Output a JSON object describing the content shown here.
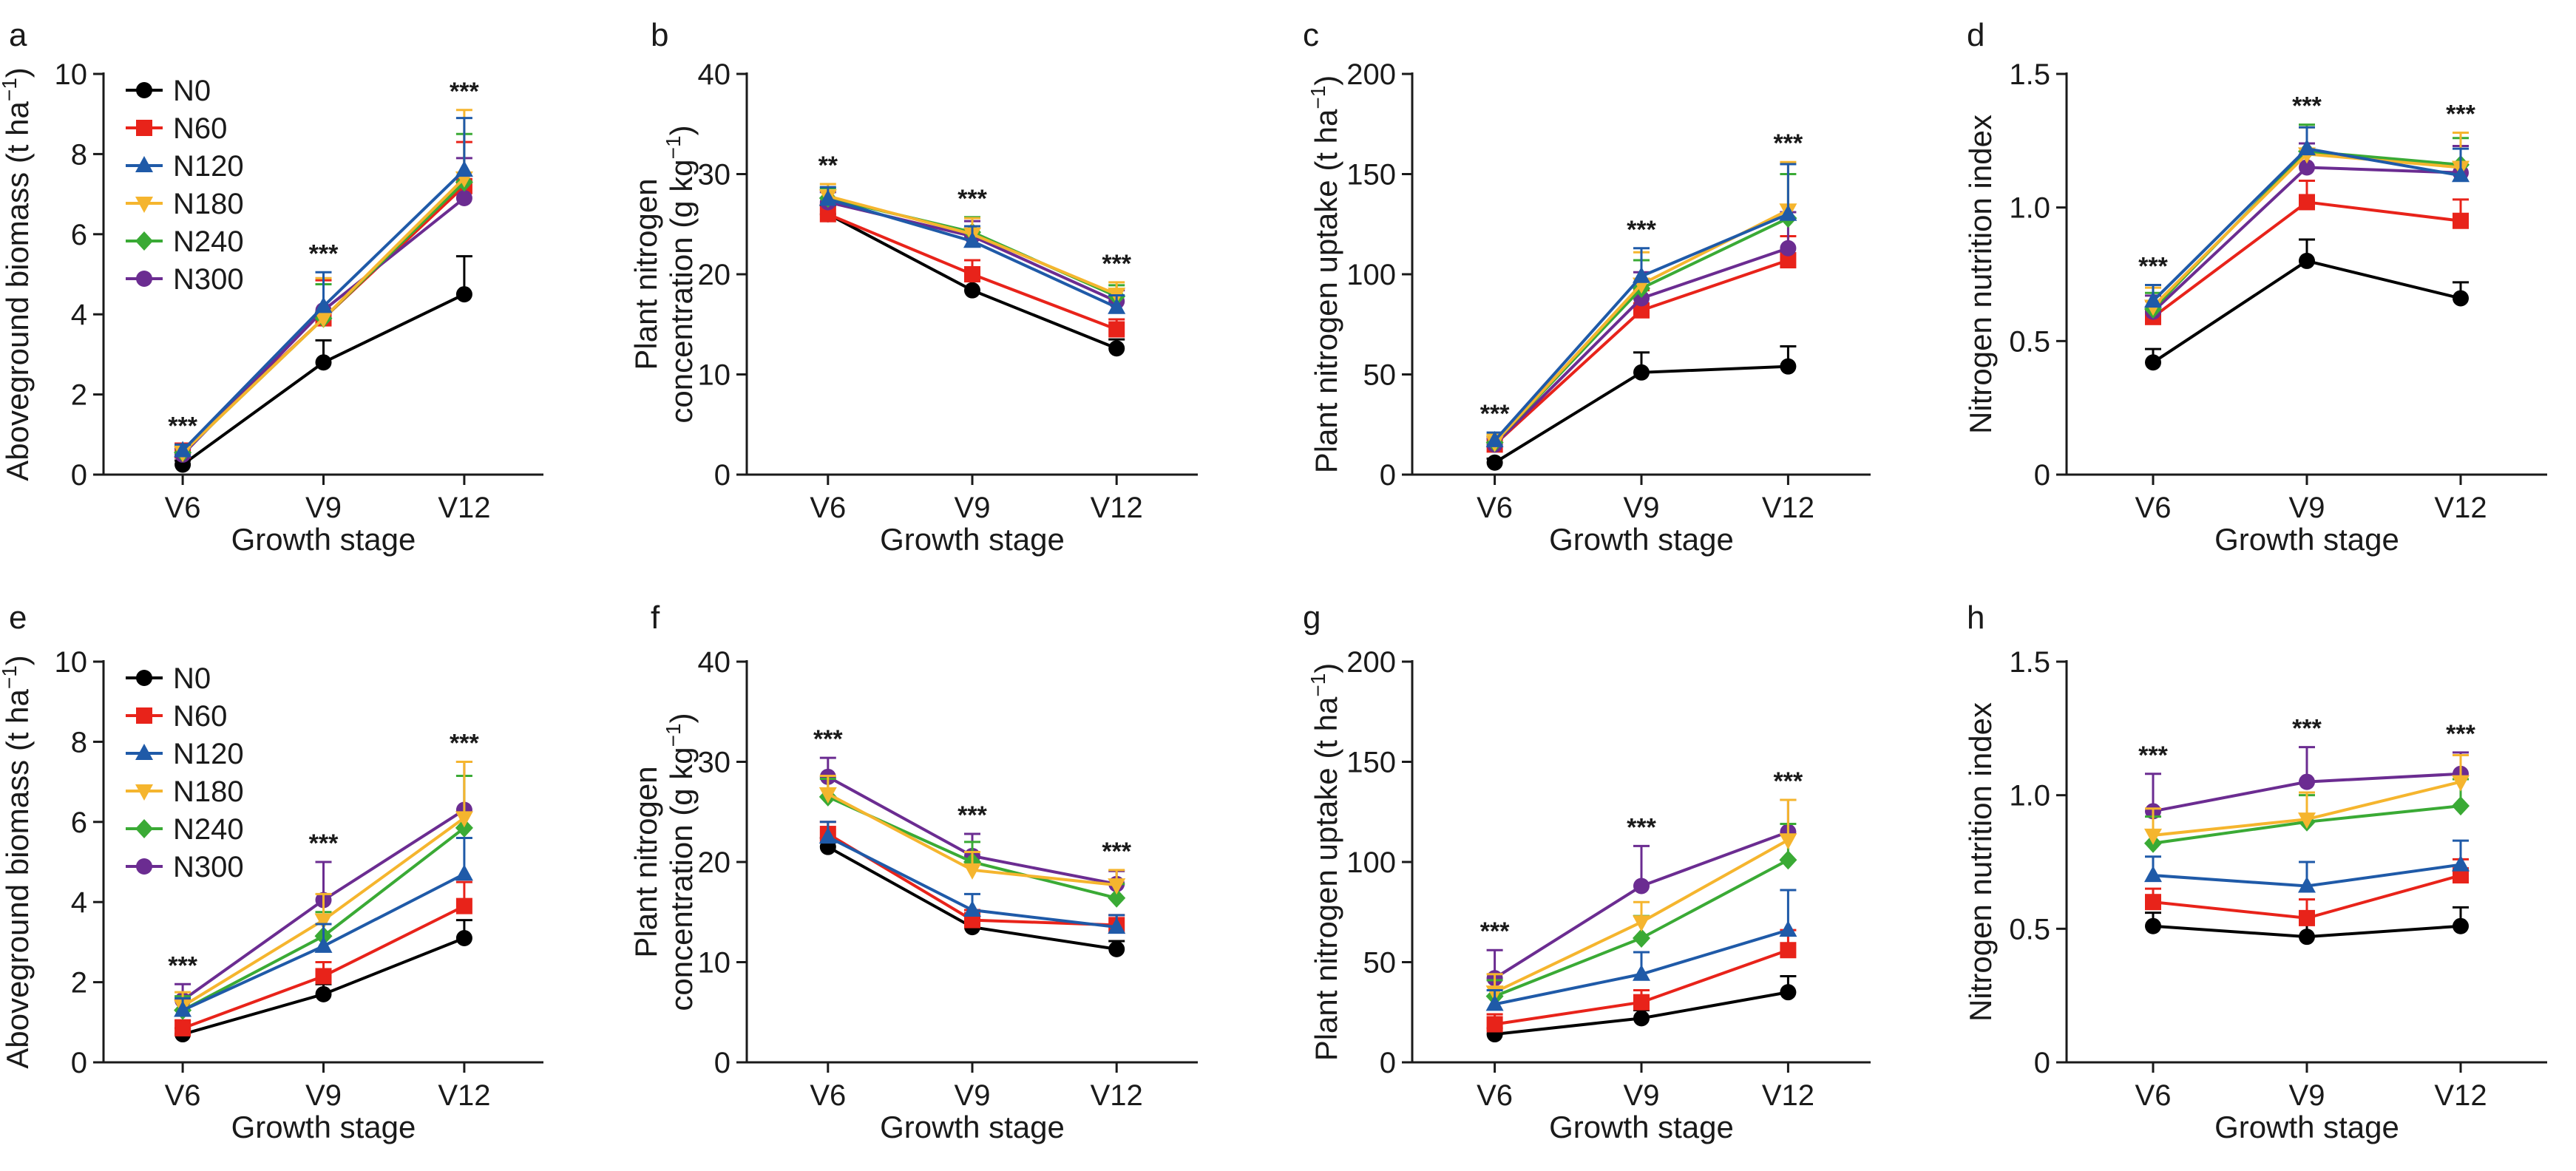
{
  "chart_data": [
    {
      "panel": "a",
      "type": "line",
      "categories": [
        "V6",
        "V9",
        "V12"
      ],
      "xlabel": "Growth stage",
      "ylabel": {
        "main": "Aboveground biomass (t ha",
        "sup": "−1",
        "after": ")"
      },
      "ylim": [
        0,
        10
      ],
      "yticks": [
        0,
        2,
        4,
        6,
        8,
        10
      ],
      "significance": [
        "***",
        "***",
        "***"
      ],
      "legend": true,
      "series": [
        {
          "name": "N0",
          "values": [
            0.25,
            2.8,
            4.5
          ],
          "errors": [
            0.1,
            0.55,
            0.95
          ]
        },
        {
          "name": "N60",
          "values": [
            0.6,
            3.9,
            7.2
          ],
          "errors": [
            0.15,
            0.95,
            1.1
          ]
        },
        {
          "name": "N120",
          "values": [
            0.6,
            4.2,
            7.6
          ],
          "errors": [
            0.15,
            0.85,
            1.3
          ]
        },
        {
          "name": "N180",
          "values": [
            0.55,
            3.9,
            7.4
          ],
          "errors": [
            0.15,
            1.0,
            1.7
          ]
        },
        {
          "name": "N240",
          "values": [
            0.55,
            3.9,
            7.3
          ],
          "errors": [
            0.15,
            0.85,
            1.2
          ]
        },
        {
          "name": "N300",
          "values": [
            0.5,
            4.1,
            6.9
          ],
          "errors": [
            0.15,
            0.8,
            1.0
          ]
        }
      ]
    },
    {
      "panel": "b",
      "type": "line",
      "categories": [
        "V6",
        "V9",
        "V12"
      ],
      "xlabel": "Growth stage",
      "ylabel": {
        "line1": "Plant nitrogen",
        "main": "concentration (g kg",
        "sup": "−1",
        "after": ")"
      },
      "ylim": [
        0,
        40
      ],
      "yticks": [
        0,
        10,
        20,
        30,
        40
      ],
      "significance": [
        "**",
        "***",
        "***"
      ],
      "legend": false,
      "series": [
        {
          "name": "N0",
          "values": [
            26.0,
            18.4,
            12.6
          ],
          "errors": [
            0.9,
            0.9,
            0.9
          ]
        },
        {
          "name": "N60",
          "values": [
            26.0,
            20.0,
            14.5
          ],
          "errors": [
            1.0,
            1.4,
            1.0
          ]
        },
        {
          "name": "N120",
          "values": [
            27.5,
            23.3,
            16.7
          ],
          "errors": [
            1.2,
            1.5,
            1.2
          ]
        },
        {
          "name": "N180",
          "values": [
            27.8,
            24.0,
            18.0
          ],
          "errors": [
            1.2,
            1.6,
            1.2
          ]
        },
        {
          "name": "N240",
          "values": [
            27.6,
            24.2,
            17.8
          ],
          "errors": [
            1.0,
            1.5,
            1.1
          ]
        },
        {
          "name": "N300",
          "values": [
            27.2,
            23.8,
            17.3
          ],
          "errors": [
            1.0,
            1.5,
            1.1
          ]
        }
      ]
    },
    {
      "panel": "c",
      "type": "line",
      "categories": [
        "V6",
        "V9",
        "V12"
      ],
      "xlabel": "Growth stage",
      "ylabel": {
        "main": "Plant nitrogen uptake (t ha",
        "sup": "−1",
        "after": ")"
      },
      "ylim": [
        0,
        200
      ],
      "yticks": [
        0,
        50,
        100,
        150,
        200
      ],
      "significance": [
        "***",
        "***",
        "***"
      ],
      "legend": false,
      "series": [
        {
          "name": "N0",
          "values": [
            6,
            51,
            54
          ],
          "errors": [
            2,
            10,
            10
          ]
        },
        {
          "name": "N60",
          "values": [
            15,
            82,
            107
          ],
          "errors": [
            3,
            10,
            12
          ]
        },
        {
          "name": "N120",
          "values": [
            17,
            99,
            130
          ],
          "errors": [
            4,
            14,
            25
          ]
        },
        {
          "name": "N180",
          "values": [
            16,
            95,
            132
          ],
          "errors": [
            4,
            16,
            24
          ]
        },
        {
          "name": "N240",
          "values": [
            16,
            93,
            128
          ],
          "errors": [
            4,
            14,
            22
          ]
        },
        {
          "name": "N300",
          "values": [
            15,
            88,
            113
          ],
          "errors": [
            3,
            13,
            18
          ]
        }
      ]
    },
    {
      "panel": "d",
      "type": "line",
      "categories": [
        "V6",
        "V9",
        "V12"
      ],
      "xlabel": "Growth stage",
      "ylabel": {
        "main": "Nitrogen nutrition index"
      },
      "ylim": [
        0,
        1.5
      ],
      "yticks": [
        0,
        0.5,
        1.0,
        1.5
      ],
      "yticklabels": [
        "0",
        "0.5",
        "1.0",
        "1.5"
      ],
      "significance": [
        "***",
        "***",
        "***"
      ],
      "legend": false,
      "series": [
        {
          "name": "N0",
          "values": [
            0.42,
            0.8,
            0.66
          ],
          "errors": [
            0.05,
            0.08,
            0.06
          ]
        },
        {
          "name": "N60",
          "values": [
            0.59,
            1.02,
            0.95
          ],
          "errors": [
            0.06,
            0.08,
            0.08
          ]
        },
        {
          "name": "N120",
          "values": [
            0.65,
            1.22,
            1.12
          ],
          "errors": [
            0.06,
            0.08,
            0.1
          ]
        },
        {
          "name": "N180",
          "values": [
            0.63,
            1.2,
            1.15
          ],
          "errors": [
            0.07,
            0.1,
            0.13
          ]
        },
        {
          "name": "N240",
          "values": [
            0.62,
            1.21,
            1.16
          ],
          "errors": [
            0.06,
            0.1,
            0.1
          ]
        },
        {
          "name": "N300",
          "values": [
            0.61,
            1.15,
            1.13
          ],
          "errors": [
            0.06,
            0.09,
            0.1
          ]
        }
      ]
    },
    {
      "panel": "e",
      "type": "line",
      "categories": [
        "V6",
        "V9",
        "V12"
      ],
      "xlabel": "Growth stage",
      "ylabel": {
        "main": "Aboveground biomass (t ha",
        "sup": "−1",
        "after": ")"
      },
      "ylim": [
        0,
        10
      ],
      "yticks": [
        0,
        2,
        4,
        6,
        8,
        10
      ],
      "significance": [
        "***",
        "***",
        "***"
      ],
      "legend": true,
      "series": [
        {
          "name": "N0",
          "values": [
            0.7,
            1.7,
            3.1
          ],
          "errors": [
            0.15,
            0.25,
            0.45
          ]
        },
        {
          "name": "N60",
          "values": [
            0.85,
            2.15,
            3.9
          ],
          "errors": [
            0.2,
            0.35,
            0.6
          ]
        },
        {
          "name": "N120",
          "values": [
            1.3,
            2.9,
            4.7
          ],
          "errors": [
            0.3,
            0.55,
            0.9
          ]
        },
        {
          "name": "N180",
          "values": [
            1.4,
            3.55,
            6.1
          ],
          "errors": [
            0.35,
            0.65,
            1.4
          ]
        },
        {
          "name": "N240",
          "values": [
            1.3,
            3.15,
            5.85
          ],
          "errors": [
            0.35,
            0.6,
            1.3
          ]
        },
        {
          "name": "N300",
          "values": [
            1.55,
            4.05,
            6.3
          ],
          "errors": [
            0.4,
            0.95,
            1.2
          ]
        }
      ]
    },
    {
      "panel": "f",
      "type": "line",
      "categories": [
        "V6",
        "V9",
        "V12"
      ],
      "xlabel": "Growth stage",
      "ylabel": {
        "line1": "Plant nitrogen",
        "main": "concentration (g kg",
        "sup": "−1",
        "after": ")"
      },
      "ylim": [
        0,
        40
      ],
      "yticks": [
        0,
        10,
        20,
        30,
        40
      ],
      "significance": [
        "***",
        "***",
        "***"
      ],
      "legend": false,
      "series": [
        {
          "name": "N0",
          "values": [
            21.5,
            13.5,
            11.3
          ],
          "errors": [
            0.9,
            0.8,
            0.8
          ]
        },
        {
          "name": "N60",
          "values": [
            22.8,
            14.2,
            13.7
          ],
          "errors": [
            1.2,
            1.0,
            1.0
          ]
        },
        {
          "name": "N120",
          "values": [
            22.5,
            15.2,
            13.5
          ],
          "errors": [
            1.5,
            1.6,
            1.2
          ]
        },
        {
          "name": "N180",
          "values": [
            26.8,
            19.2,
            17.7
          ],
          "errors": [
            1.8,
            1.8,
            1.5
          ]
        },
        {
          "name": "N240",
          "values": [
            26.5,
            20.0,
            16.4
          ],
          "errors": [
            1.8,
            2.0,
            1.4
          ]
        },
        {
          "name": "N300",
          "values": [
            28.5,
            20.6,
            17.8
          ],
          "errors": [
            1.9,
            2.2,
            1.3
          ]
        }
      ]
    },
    {
      "panel": "g",
      "type": "line",
      "categories": [
        "V6",
        "V9",
        "V12"
      ],
      "xlabel": "Growth stage",
      "ylabel": {
        "main": "Plant nitrogen uptake (t ha",
        "sup": "−1",
        "after": ")"
      },
      "ylim": [
        0,
        200
      ],
      "yticks": [
        0,
        50,
        100,
        150,
        200
      ],
      "significance": [
        "***",
        "***",
        "***"
      ],
      "legend": false,
      "series": [
        {
          "name": "N0",
          "values": [
            14,
            22,
            35
          ],
          "errors": [
            3,
            4,
            8
          ]
        },
        {
          "name": "N60",
          "values": [
            19,
            30,
            56
          ],
          "errors": [
            5,
            6,
            10
          ]
        },
        {
          "name": "N120",
          "values": [
            29,
            44,
            66
          ],
          "errors": [
            7,
            11,
            20
          ]
        },
        {
          "name": "N180",
          "values": [
            35,
            70,
            111
          ],
          "errors": [
            9,
            10,
            20
          ]
        },
        {
          "name": "N240",
          "values": [
            33,
            62,
            101
          ],
          "errors": [
            8,
            11,
            18
          ]
        },
        {
          "name": "N300",
          "values": [
            42,
            88,
            115
          ],
          "errors": [
            14,
            20,
            16
          ]
        }
      ]
    },
    {
      "panel": "h",
      "type": "line",
      "categories": [
        "V6",
        "V9",
        "V12"
      ],
      "xlabel": "Growth stage",
      "ylabel": {
        "main": "Nitrogen nutrition index"
      },
      "ylim": [
        0,
        1.5
      ],
      "yticks": [
        0,
        0.5,
        1.0,
        1.5
      ],
      "yticklabels": [
        "0",
        "0.5",
        "1.0",
        "1.5"
      ],
      "significance": [
        "***",
        "***",
        "***"
      ],
      "legend": false,
      "series": [
        {
          "name": "N0",
          "values": [
            0.51,
            0.47,
            0.51
          ],
          "errors": [
            0.05,
            0.05,
            0.07
          ]
        },
        {
          "name": "N60",
          "values": [
            0.6,
            0.54,
            0.7
          ],
          "errors": [
            0.05,
            0.07,
            0.06
          ]
        },
        {
          "name": "N120",
          "values": [
            0.7,
            0.66,
            0.74
          ],
          "errors": [
            0.07,
            0.09,
            0.09
          ]
        },
        {
          "name": "N180",
          "values": [
            0.85,
            0.91,
            1.05
          ],
          "errors": [
            0.1,
            0.1,
            0.1
          ]
        },
        {
          "name": "N240",
          "values": [
            0.82,
            0.9,
            0.96
          ],
          "errors": [
            0.1,
            0.1,
            0.1
          ]
        },
        {
          "name": "N300",
          "values": [
            0.94,
            1.05,
            1.08
          ],
          "errors": [
            0.14,
            0.13,
            0.08
          ]
        }
      ]
    }
  ],
  "series_styles": {
    "N0": {
      "color": "#000000",
      "marker": "circle"
    },
    "N60": {
      "color": "#e8231a",
      "marker": "square"
    },
    "N120": {
      "color": "#1f5aa8",
      "marker": "triangle-up"
    },
    "N180": {
      "color": "#f5b52e",
      "marker": "triangle-down"
    },
    "N240": {
      "color": "#3aaa35",
      "marker": "diamond"
    },
    "N300": {
      "color": "#6b2c91",
      "marker": "circle"
    }
  }
}
